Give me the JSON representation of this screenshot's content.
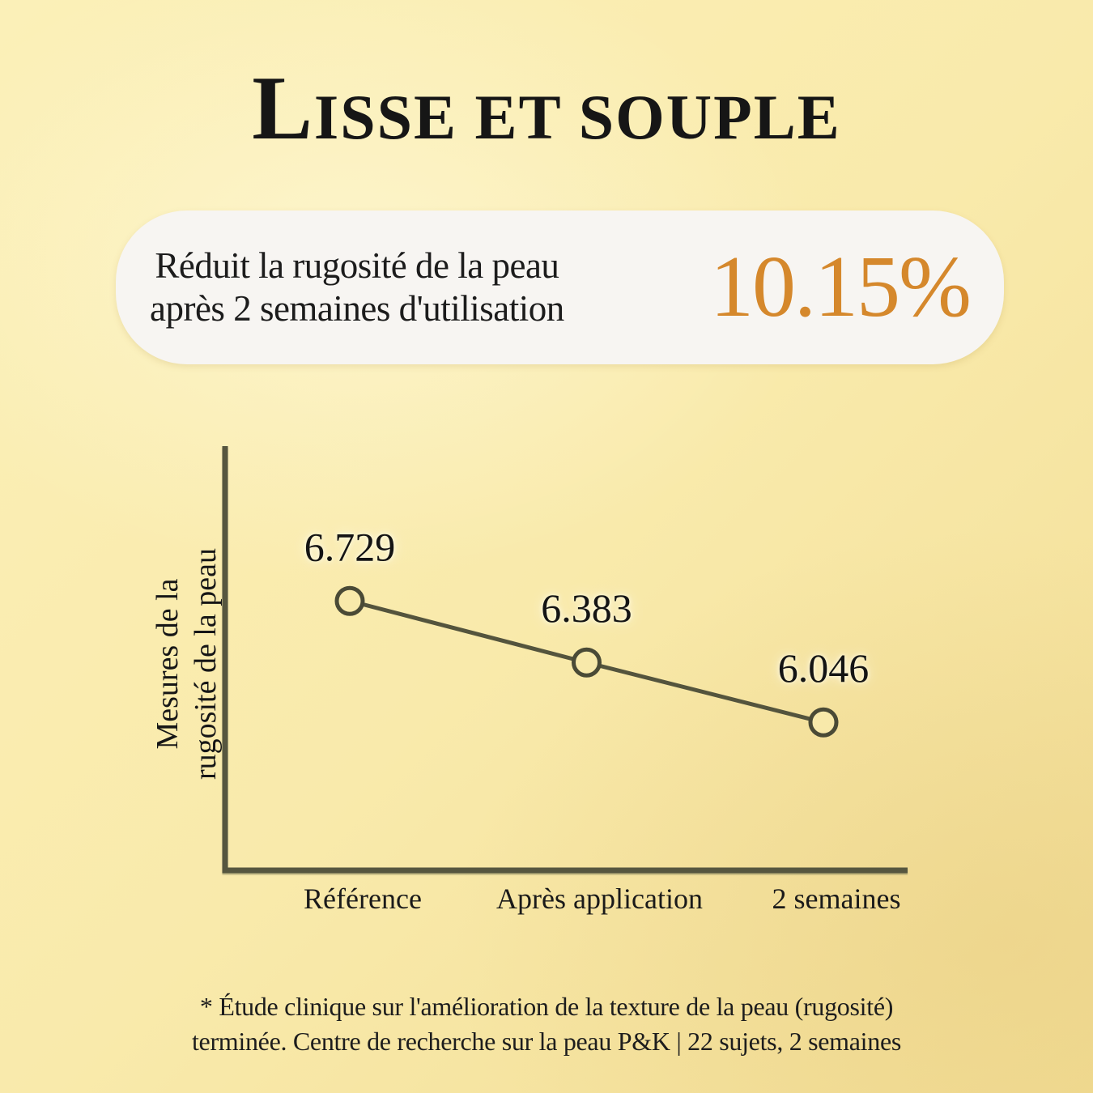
{
  "header": {
    "title": "Lisse et souple"
  },
  "highlight_card": {
    "line1": "Réduit la rugosité de la peau",
    "line2": "après 2 semaines d'utilisation",
    "percentage": "10.15%"
  },
  "chart_data": {
    "type": "line",
    "title": "",
    "xlabel": "",
    "ylabel": "Mesures de la rugosité de la peau",
    "ylabel_lines": [
      "Mesures de la",
      "rugosité de la peau"
    ],
    "categories": [
      "Référence",
      "Après application",
      "2 semaines"
    ],
    "values": [
      6.729,
      6.383,
      6.046
    ],
    "point_labels": [
      "6.729",
      "6.383",
      "6.046"
    ],
    "ylim": [
      5.2,
      7.6
    ],
    "grid": false,
    "legend": "none",
    "marker": "open-circle"
  },
  "footnote": {
    "line1": "* Étude clinique sur l'amélioration de la texture de la peau (rugosité)",
    "line2": "terminée. Centre de recherche sur la peau P&K | 22 sujets, 2 semaines"
  },
  "colors": {
    "background": "#f9ebac",
    "card_background": "#f7f5f2",
    "accent_orange": "#d5882c",
    "text_dark": "#191919",
    "chart_axis": "#56563f",
    "chart_line": "#54543d",
    "point_stroke": "#4a4a36",
    "point_fill": "#f8e9aa"
  }
}
